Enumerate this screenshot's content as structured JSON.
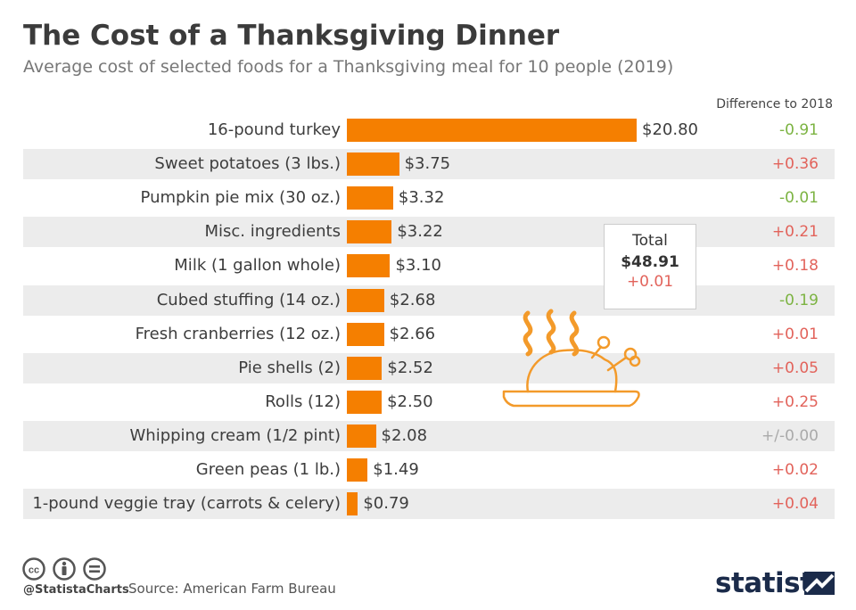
{
  "title": "The Cost of a Thanksgiving Dinner",
  "subtitle": "Average cost of selected foods for a Thanksgiving meal for 10 people (2019)",
  "diff_header": "Difference to 2018",
  "total": {
    "label": "Total",
    "value": "$48.91",
    "diff": "+0.01"
  },
  "footer": {
    "handle": "@StatistaCharts",
    "source": "Source: American Farm Bureau",
    "logo": "statista"
  },
  "colors": {
    "bar": "#f57f00",
    "positive_diff": "#e2635b",
    "negative_diff": "#7cb342",
    "neutral_diff": "#aaaaaa",
    "shade": "#ececec"
  },
  "icons": [
    "creative-commons-icon",
    "attribution-icon",
    "no-derivatives-icon",
    "roast-turkey-icon",
    "statista-logo-mark"
  ],
  "chart_data": {
    "type": "bar",
    "orientation": "horizontal",
    "categories": [
      "16-pound turkey",
      "Sweet potatoes (3 lbs.)",
      "Pumpkin pie mix (30 oz.)",
      "Misc. ingredients",
      "Milk (1 gallon whole)",
      "Cubed stuffing (14 oz.)",
      "Fresh cranberries (12 oz.)",
      "Pie shells (2)",
      "Rolls (12)",
      "Whipping cream (1/2 pint)",
      "Green peas (1 lb.)",
      "1-pound veggie tray (carrots & celery)"
    ],
    "values": [
      20.8,
      3.75,
      3.32,
      3.22,
      3.1,
      2.68,
      2.66,
      2.52,
      2.5,
      2.08,
      1.49,
      0.79
    ],
    "value_labels": [
      "$20.80",
      "$3.75",
      "$3.32",
      "$3.22",
      "$3.10",
      "$2.68",
      "$2.66",
      "$2.52",
      "$2.50",
      "$2.08",
      "$1.49",
      "$0.79"
    ],
    "differences": [
      -0.91,
      0.36,
      -0.01,
      0.21,
      0.18,
      -0.19,
      0.01,
      0.05,
      0.25,
      0.0,
      0.02,
      0.04
    ],
    "difference_labels": [
      "-0.91",
      "+0.36",
      "-0.01",
      "+0.21",
      "+0.18",
      "-0.19",
      "+0.01",
      "+0.05",
      "+0.25",
      "+/-0.00",
      "+0.02",
      "+0.04"
    ]
  }
}
